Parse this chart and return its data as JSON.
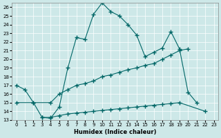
{
  "xlabel": "Humidex (Indice chaleur)",
  "bg_color": "#cde8e8",
  "line_color": "#006666",
  "grid_color": "#ffffff",
  "xlim": [
    -0.5,
    23.5
  ],
  "ylim": [
    13,
    26.5
  ],
  "yticks": [
    13,
    14,
    15,
    16,
    17,
    18,
    19,
    20,
    21,
    22,
    23,
    24,
    25,
    26
  ],
  "xticks": [
    0,
    1,
    2,
    3,
    4,
    5,
    6,
    7,
    8,
    9,
    10,
    11,
    12,
    13,
    14,
    15,
    16,
    17,
    18,
    19,
    20,
    21,
    22,
    23
  ],
  "line1_x": [
    0,
    1,
    2,
    3,
    4,
    5,
    6,
    7,
    8,
    9,
    10,
    11,
    12,
    13,
    14,
    15,
    16,
    17,
    18,
    19,
    20,
    21
  ],
  "line1_y": [
    17.0,
    16.5,
    15.0,
    13.3,
    13.2,
    14.5,
    19.0,
    22.5,
    22.3,
    25.2,
    26.5,
    25.5,
    25.0,
    24.0,
    22.8,
    20.3,
    20.8,
    21.3,
    23.2,
    21.2,
    16.2,
    15.0
  ],
  "line2_x": [
    0,
    2,
    4,
    5,
    6,
    7,
    8,
    9,
    10,
    11,
    12,
    13,
    14,
    15,
    16,
    17,
    18,
    19,
    20
  ],
  "line2_y": [
    15.0,
    15.0,
    15.0,
    16.0,
    16.5,
    17.0,
    17.2,
    17.5,
    18.0,
    18.2,
    18.5,
    18.8,
    19.0,
    19.3,
    19.5,
    20.0,
    20.5,
    21.0,
    21.2
  ],
  "line3_x": [
    3,
    4,
    5,
    6,
    7,
    8,
    9,
    10,
    11,
    12,
    13,
    14,
    15,
    16,
    17,
    18,
    19,
    22
  ],
  "line3_y": [
    13.3,
    13.3,
    13.5,
    13.7,
    13.8,
    13.9,
    14.0,
    14.1,
    14.2,
    14.3,
    14.4,
    14.5,
    14.6,
    14.7,
    14.8,
    14.9,
    15.0,
    14.0
  ]
}
